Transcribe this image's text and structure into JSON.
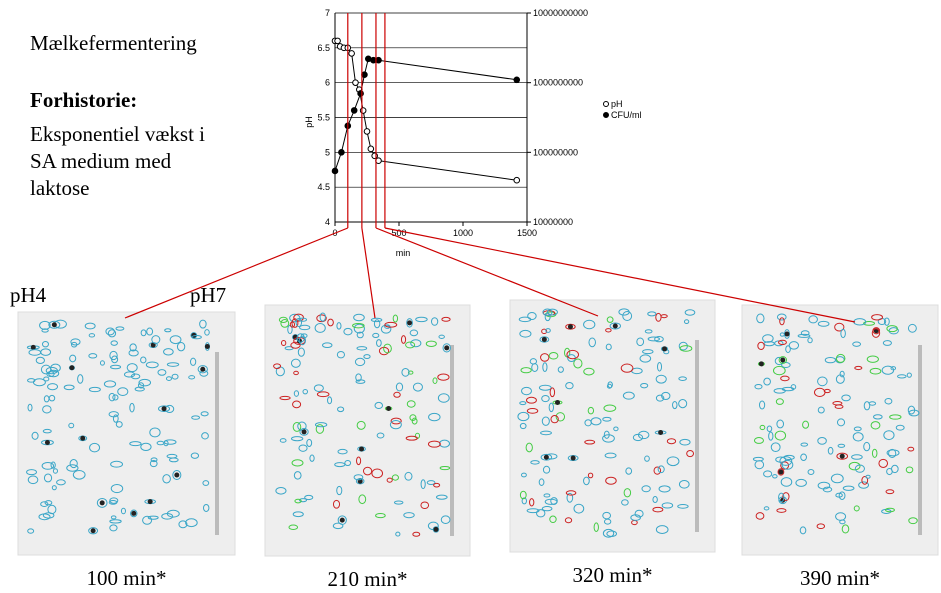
{
  "title": "Mælkefermentering",
  "subtitle": "Forhistorie:",
  "description": [
    "Eksponentiel vækst i",
    "SA medium med",
    "laktose"
  ],
  "chart_data": {
    "type": "line",
    "x_label": "min",
    "y_label": "pH",
    "xlim": [
      0,
      1500
    ],
    "xticks": [
      0,
      500,
      1000,
      1500
    ],
    "ylim": [
      4,
      7
    ],
    "yticks": [
      4,
      4.5,
      5,
      5.5,
      6,
      6.5,
      7
    ],
    "y2lim": [
      10000000,
      10000000000
    ],
    "y2ticks": [
      10000000,
      100000000,
      1000000000,
      10000000000
    ],
    "y2_log": true,
    "grid": true,
    "legend": "right",
    "series": [
      {
        "name": "pH",
        "color": "#000000",
        "marker": "open",
        "x": [
          0,
          20,
          40,
          70,
          100,
          130,
          160,
          190,
          220,
          250,
          280,
          310,
          340,
          1420
        ],
        "values": [
          6.6,
          6.6,
          6.52,
          6.5,
          6.5,
          6.42,
          6.0,
          5.9,
          5.6,
          5.3,
          5.05,
          4.95,
          4.88,
          4.6
        ]
      },
      {
        "name": "CFU/ml",
        "color": "#000000",
        "marker": "filled",
        "axis": "y2",
        "x": [
          0,
          50,
          100,
          150,
          200,
          230,
          260,
          300,
          340,
          1420
        ],
        "values": [
          54000000,
          100000000,
          240000000,
          400000000,
          700000000,
          1300000000,
          2200000000,
          2100000000,
          2100000000,
          1100000000
        ]
      }
    ],
    "marker_lines": {
      "color": "#cc0000",
      "x": [
        100,
        210,
        320,
        390
      ]
    }
  },
  "gel_axis": [
    "pH4",
    "pH7"
  ],
  "gels": [
    "100 min*",
    "210 min*",
    "320 min*",
    "390 min*"
  ]
}
